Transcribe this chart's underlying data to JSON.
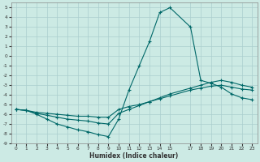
{
  "xlabel": "Humidex (Indice chaleur)",
  "background_color": "#cceae4",
  "grid_color": "#aacece",
  "line_color": "#006868",
  "xlim": [
    -0.5,
    23.5
  ],
  "ylim": [
    -9,
    5.5
  ],
  "xticks": [
    0,
    1,
    2,
    3,
    4,
    5,
    6,
    7,
    8,
    9,
    10,
    11,
    12,
    13,
    14,
    15,
    17,
    18,
    19,
    20,
    21,
    22,
    23
  ],
  "yticks": [
    5,
    4,
    3,
    2,
    1,
    0,
    -1,
    -2,
    -3,
    -4,
    -5,
    -6,
    -7,
    -8,
    -9
  ],
  "line1_x": [
    0,
    1,
    2,
    3,
    4,
    5,
    6,
    7,
    8,
    9,
    10,
    11,
    12,
    13,
    14,
    15,
    17,
    18,
    19,
    20,
    21,
    22,
    23
  ],
  "line1_y": [
    -5.5,
    -5.6,
    -6.0,
    -6.5,
    -7.0,
    -7.3,
    -7.6,
    -7.8,
    -8.1,
    -8.3,
    -6.5,
    -3.5,
    -1.0,
    1.5,
    4.5,
    5.0,
    3.0,
    -2.5,
    -2.8,
    -3.2,
    -3.9,
    -4.3,
    -4.5
  ],
  "line2_x": [
    0,
    1,
    2,
    3,
    4,
    5,
    6,
    7,
    8,
    9,
    10,
    11,
    12,
    13,
    14,
    15,
    17,
    18,
    19,
    20,
    21,
    22,
    23
  ],
  "line2_y": [
    -5.5,
    -5.6,
    -5.8,
    -5.9,
    -6.0,
    -6.1,
    -6.2,
    -6.2,
    -6.3,
    -6.3,
    -5.5,
    -5.2,
    -5.0,
    -4.7,
    -4.4,
    -4.1,
    -3.5,
    -3.3,
    -3.1,
    -3.0,
    -3.2,
    -3.4,
    -3.5
  ],
  "line3_x": [
    0,
    1,
    2,
    3,
    4,
    5,
    6,
    7,
    8,
    9,
    10,
    11,
    12,
    13,
    14,
    15,
    17,
    18,
    19,
    20,
    21,
    22,
    23
  ],
  "line3_y": [
    -5.5,
    -5.6,
    -5.9,
    -6.1,
    -6.3,
    -6.5,
    -6.6,
    -6.7,
    -6.9,
    -7.0,
    -5.9,
    -5.5,
    -5.1,
    -4.7,
    -4.3,
    -3.9,
    -3.3,
    -3.0,
    -2.7,
    -2.5,
    -2.7,
    -3.0,
    -3.2
  ]
}
